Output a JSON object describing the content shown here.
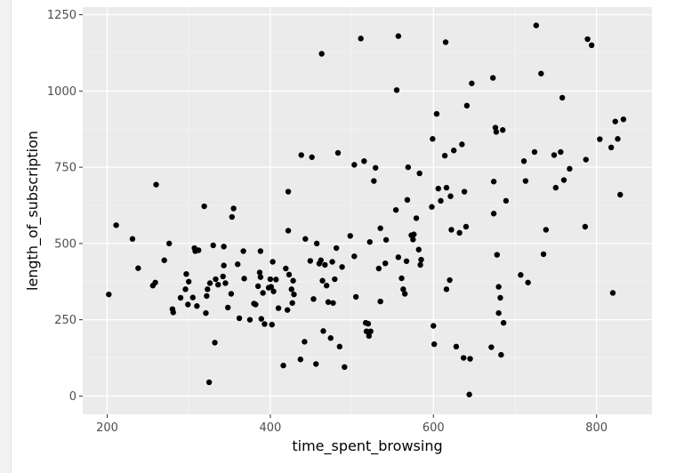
{
  "chart_data": {
    "type": "scatter",
    "title": "",
    "xlabel": "time_spent_browsing",
    "ylabel": "length_of_subscription",
    "xlim": [
      170,
      868
    ],
    "ylim": [
      -60,
      1275
    ],
    "xticks": [
      200,
      400,
      600,
      800
    ],
    "yticks": [
      0,
      250,
      500,
      750,
      1000,
      1250
    ],
    "grid": true,
    "legend": "none",
    "colors": {
      "panel": "#ebebeb",
      "grid_major": "#ffffff",
      "point": "#000000"
    },
    "points": [
      [
        202,
        333
      ],
      [
        211,
        560
      ],
      [
        231,
        515
      ],
      [
        238,
        419
      ],
      [
        256,
        362
      ],
      [
        259,
        372
      ],
      [
        260,
        693
      ],
      [
        270,
        445
      ],
      [
        276,
        500
      ],
      [
        280,
        285
      ],
      [
        281,
        274
      ],
      [
        290,
        322
      ],
      [
        296,
        350
      ],
      [
        297,
        400
      ],
      [
        299,
        300
      ],
      [
        300,
        375
      ],
      [
        305,
        323
      ],
      [
        307,
        485
      ],
      [
        308,
        475
      ],
      [
        310,
        295
      ],
      [
        312,
        478
      ],
      [
        319,
        622
      ],
      [
        321,
        272
      ],
      [
        322,
        328
      ],
      [
        323,
        350
      ],
      [
        325,
        45
      ],
      [
        326,
        370
      ],
      [
        330,
        494
      ],
      [
        332,
        175
      ],
      [
        333,
        383
      ],
      [
        336,
        365
      ],
      [
        342,
        392
      ],
      [
        343,
        428
      ],
      [
        343,
        490
      ],
      [
        345,
        370
      ],
      [
        348,
        290
      ],
      [
        352,
        335
      ],
      [
        353,
        587
      ],
      [
        355,
        615
      ],
      [
        360,
        432
      ],
      [
        362,
        255
      ],
      [
        367,
        475
      ],
      [
        368,
        385
      ],
      [
        375,
        250
      ],
      [
        380,
        303
      ],
      [
        382,
        300
      ],
      [
        385,
        360
      ],
      [
        387,
        405
      ],
      [
        388,
        390
      ],
      [
        388,
        475
      ],
      [
        389,
        253
      ],
      [
        391,
        338
      ],
      [
        393,
        236
      ],
      [
        398,
        355
      ],
      [
        400,
        383
      ],
      [
        401,
        358
      ],
      [
        402,
        234
      ],
      [
        403,
        440
      ],
      [
        404,
        343
      ],
      [
        407,
        382
      ],
      [
        410,
        288
      ],
      [
        416,
        100
      ],
      [
        419,
        418
      ],
      [
        421,
        282
      ],
      [
        422,
        542
      ],
      [
        422,
        670
      ],
      [
        423,
        398
      ],
      [
        426,
        350
      ],
      [
        428,
        378
      ],
      [
        427,
        305
      ],
      [
        429,
        333
      ],
      [
        437,
        120
      ],
      [
        438,
        790
      ],
      [
        442,
        178
      ],
      [
        443,
        515
      ],
      [
        449,
        443
      ],
      [
        451,
        783
      ],
      [
        453,
        318
      ],
      [
        456,
        105
      ],
      [
        457,
        500
      ],
      [
        460,
        434
      ],
      [
        462,
        445
      ],
      [
        463,
        1122
      ],
      [
        464,
        378
      ],
      [
        465,
        213
      ],
      [
        467,
        430
      ],
      [
        469,
        362
      ],
      [
        471,
        308
      ],
      [
        474,
        190
      ],
      [
        476,
        440
      ],
      [
        477,
        305
      ],
      [
        479,
        383
      ],
      [
        481,
        485
      ],
      [
        483,
        797
      ],
      [
        485,
        162
      ],
      [
        488,
        423
      ],
      [
        491,
        95
      ],
      [
        498,
        525
      ],
      [
        503,
        758
      ],
      [
        503,
        458
      ],
      [
        505,
        325
      ],
      [
        511,
        1172
      ],
      [
        515,
        770
      ],
      [
        517,
        240
      ],
      [
        518,
        212
      ],
      [
        520,
        237
      ],
      [
        521,
        197
      ],
      [
        522,
        505
      ],
      [
        523,
        212
      ],
      [
        527,
        705
      ],
      [
        529,
        748
      ],
      [
        533,
        418
      ],
      [
        535,
        550
      ],
      [
        535,
        310
      ],
      [
        541,
        435
      ],
      [
        542,
        512
      ],
      [
        554,
        610
      ],
      [
        555,
        1003
      ],
      [
        557,
        1180
      ],
      [
        557,
        455
      ],
      [
        561,
        386
      ],
      [
        563,
        350
      ],
      [
        565,
        335
      ],
      [
        567,
        442
      ],
      [
        568,
        643
      ],
      [
        569,
        750
      ],
      [
        573,
        527
      ],
      [
        575,
        513
      ],
      [
        576,
        530
      ],
      [
        579,
        583
      ],
      [
        582,
        480
      ],
      [
        583,
        730
      ],
      [
        584,
        430
      ],
      [
        585,
        447
      ],
      [
        598,
        620
      ],
      [
        599,
        843
      ],
      [
        600,
        230
      ],
      [
        601,
        170
      ],
      [
        604,
        925
      ],
      [
        606,
        680
      ],
      [
        609,
        640
      ],
      [
        614,
        788
      ],
      [
        615,
        1160
      ],
      [
        616,
        350
      ],
      [
        616,
        683
      ],
      [
        620,
        380
      ],
      [
        621,
        655
      ],
      [
        622,
        545
      ],
      [
        625,
        805
      ],
      [
        628,
        162
      ],
      [
        632,
        535
      ],
      [
        635,
        825
      ],
      [
        637,
        125
      ],
      [
        638,
        670
      ],
      [
        640,
        555
      ],
      [
        641,
        952
      ],
      [
        644,
        5
      ],
      [
        645,
        122
      ],
      [
        647,
        1025
      ],
      [
        671,
        160
      ],
      [
        673,
        1043
      ],
      [
        674,
        598
      ],
      [
        674,
        703
      ],
      [
        676,
        880
      ],
      [
        677,
        866
      ],
      [
        678,
        463
      ],
      [
        680,
        272
      ],
      [
        680,
        358
      ],
      [
        682,
        322
      ],
      [
        683,
        135
      ],
      [
        685,
        872
      ],
      [
        686,
        240
      ],
      [
        689,
        640
      ],
      [
        707,
        397
      ],
      [
        711,
        770
      ],
      [
        713,
        705
      ],
      [
        716,
        372
      ],
      [
        724,
        800
      ],
      [
        726,
        1215
      ],
      [
        732,
        1057
      ],
      [
        735,
        465
      ],
      [
        738,
        545
      ],
      [
        748,
        790
      ],
      [
        750,
        683
      ],
      [
        756,
        800
      ],
      [
        758,
        978
      ],
      [
        760,
        708
      ],
      [
        767,
        745
      ],
      [
        786,
        555
      ],
      [
        787,
        775
      ],
      [
        789,
        1170
      ],
      [
        794,
        1150
      ],
      [
        804,
        842
      ],
      [
        820,
        338
      ],
      [
        818,
        815
      ],
      [
        823,
        900
      ],
      [
        826,
        843
      ],
      [
        829,
        660
      ],
      [
        833,
        907
      ]
    ]
  }
}
